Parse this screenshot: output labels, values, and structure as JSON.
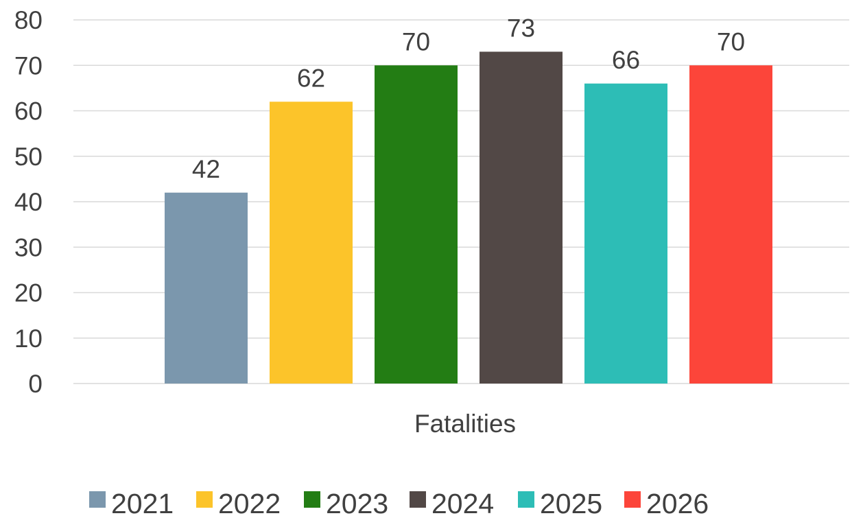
{
  "chart_data": {
    "type": "bar",
    "title": "",
    "xlabel": "",
    "ylabel": "",
    "categories": [
      "Fatalities"
    ],
    "series": [
      {
        "name": "2021",
        "values": [
          42
        ],
        "color": "#7b97ad"
      },
      {
        "name": "2022",
        "values": [
          62
        ],
        "color": "#fcc42a"
      },
      {
        "name": "2023",
        "values": [
          70
        ],
        "color": "#237d14"
      },
      {
        "name": "2024",
        "values": [
          73
        ],
        "color": "#524846"
      },
      {
        "name": "2025",
        "values": [
          66
        ],
        "color": "#2dbdb6"
      },
      {
        "name": "2026",
        "values": [
          70
        ],
        "color": "#fc453a"
      }
    ],
    "ylim": [
      0,
      80
    ],
    "yticks": [
      0,
      10,
      20,
      30,
      40,
      50,
      60,
      70,
      80
    ],
    "data_labels": true,
    "grid": true,
    "legend_position": "bottom"
  }
}
